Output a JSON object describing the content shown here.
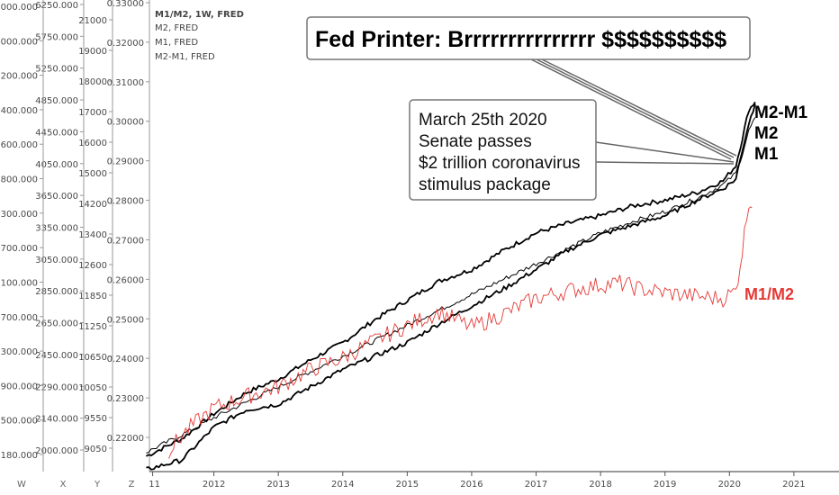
{
  "header": {
    "legend": [
      "M1/M2, 1W, FRED",
      "M2, FRED",
      "M1, FRED",
      "M2-M1, FRED"
    ]
  },
  "annotations": {
    "title_box": "Fed Printer: Brrrrrrrrrrrrrrr $$$$$$$$$$",
    "event_lines": [
      "March 25th 2020",
      "Senate passes",
      "$2 trillion coronavirus",
      "stimulus package"
    ],
    "series_labels": [
      "M2-M1",
      "M2",
      "M1"
    ],
    "ratio_label": "M1/M2"
  },
  "axes_letters": [
    "W",
    "X",
    "Y",
    "Z"
  ],
  "colors": {
    "money_series": "#000000",
    "ratio_series": "#e53935",
    "axis": "#555555",
    "callout_border": "#777777"
  },
  "chart_data": {
    "type": "line",
    "x_ticks": [
      "11",
      "2012",
      "2013",
      "2014",
      "2015",
      "2016",
      "2017",
      "2018",
      "2019",
      "2020",
      "2021"
    ],
    "y_axes": [
      {
        "id": "W",
        "ticks": [
          "15000.000",
          "14000.000",
          "13200.000",
          "12400.000",
          "11600.000",
          "10800.000",
          "10300.000",
          "9700.000",
          "9100.000",
          "8700.000",
          "8300.000",
          "7900.000",
          "7500.000",
          "7180.000"
        ]
      },
      {
        "id": "X",
        "ticks": [
          "6250.000",
          "5750.000",
          "5250.000",
          "4850.000",
          "4450.000",
          "4050.000",
          "3650.000",
          "3350.000",
          "3050.000",
          "2850.000",
          "2650.000",
          "2450.000",
          "2290.000",
          "2140.000",
          "2000.000"
        ]
      },
      {
        "id": "Y",
        "ticks": [
          "21000",
          "19000",
          "18000",
          "17000",
          "16000",
          "15000",
          "14200",
          "13400",
          "12600",
          "11850",
          "11250",
          "10650",
          "10050",
          "9550",
          "9050"
        ]
      },
      {
        "id": "Z",
        "ticks": [
          "0.33000",
          "0.32000",
          "0.31000",
          "0.30000",
          "0.29000",
          "0.28000",
          "0.27000",
          "0.26000",
          "0.25000",
          "0.24000",
          "0.23000",
          "0.22000"
        ]
      }
    ],
    "series": [
      {
        "name": "M2-M1",
        "points": [
          [
            2010.95,
            0.2165
          ],
          [
            2011.5,
            0.221
          ],
          [
            2012.0,
            0.2275
          ],
          [
            2012.5,
            0.233
          ],
          [
            2013.0,
            0.2365
          ],
          [
            2013.5,
            0.2415
          ],
          [
            2014.0,
            0.246
          ],
          [
            2014.5,
            0.252
          ],
          [
            2015.0,
            0.257
          ],
          [
            2015.5,
            0.262
          ],
          [
            2016.0,
            0.265
          ],
          [
            2016.5,
            0.27
          ],
          [
            2017.0,
            0.2745
          ],
          [
            2017.5,
            0.277
          ],
          [
            2018.0,
            0.279
          ],
          [
            2018.5,
            0.2815
          ],
          [
            2019.0,
            0.283
          ],
          [
            2019.5,
            0.285
          ],
          [
            2019.9,
            0.288
          ],
          [
            2020.1,
            0.292
          ],
          [
            2020.2,
            0.299
          ],
          [
            2020.3,
            0.3065
          ],
          [
            2020.4,
            0.3085
          ]
        ]
      },
      {
        "name": "M2",
        "points": [
          [
            2010.95,
            0.2175
          ],
          [
            2011.5,
            0.222
          ],
          [
            2012.0,
            0.2265
          ],
          [
            2012.5,
            0.2305
          ],
          [
            2013.0,
            0.2345
          ],
          [
            2013.5,
            0.2385
          ],
          [
            2014.0,
            0.2425
          ],
          [
            2014.5,
            0.2465
          ],
          [
            2015.0,
            0.2505
          ],
          [
            2015.5,
            0.2545
          ],
          [
            2016.0,
            0.2585
          ],
          [
            2016.5,
            0.2625
          ],
          [
            2017.0,
            0.2665
          ],
          [
            2017.5,
            0.2705
          ],
          [
            2018.0,
            0.2745
          ],
          [
            2018.5,
            0.2775
          ],
          [
            2019.0,
            0.28
          ],
          [
            2019.5,
            0.2835
          ],
          [
            2019.9,
            0.287
          ],
          [
            2020.1,
            0.29
          ],
          [
            2020.2,
            0.295
          ],
          [
            2020.3,
            0.301
          ],
          [
            2020.4,
            0.3045
          ]
        ]
      },
      {
        "name": "M1",
        "points": [
          [
            2010.95,
            0.213
          ],
          [
            2011.5,
            0.2155
          ],
          [
            2012.0,
            0.224
          ],
          [
            2012.5,
            0.2285
          ],
          [
            2013.0,
            0.23
          ],
          [
            2013.5,
            0.2345
          ],
          [
            2014.0,
            0.239
          ],
          [
            2014.5,
            0.2425
          ],
          [
            2015.0,
            0.246
          ],
          [
            2015.5,
            0.251
          ],
          [
            2016.0,
            0.2555
          ],
          [
            2016.5,
            0.26
          ],
          [
            2017.0,
            0.265
          ],
          [
            2017.5,
            0.27
          ],
          [
            2018.0,
            0.274
          ],
          [
            2018.5,
            0.2765
          ],
          [
            2019.0,
            0.279
          ],
          [
            2019.5,
            0.283
          ],
          [
            2019.9,
            0.286
          ],
          [
            2020.1,
            0.2885
          ],
          [
            2020.2,
            0.296
          ],
          [
            2020.3,
            0.303
          ],
          [
            2020.4,
            0.308
          ]
        ]
      },
      {
        "name": "M1/M2",
        "points": [
          [
            2011.3,
            0.218
          ],
          [
            2011.6,
            0.2235
          ],
          [
            2012.0,
            0.229
          ],
          [
            2012.5,
            0.232
          ],
          [
            2013.0,
            0.2345
          ],
          [
            2013.5,
            0.239
          ],
          [
            2014.0,
            0.242
          ],
          [
            2014.5,
            0.2465
          ],
          [
            2015.0,
            0.2505
          ],
          [
            2015.5,
            0.254
          ],
          [
            2016.0,
            0.25
          ],
          [
            2016.5,
            0.2535
          ],
          [
            2017.0,
            0.2575
          ],
          [
            2017.5,
            0.2595
          ],
          [
            2018.0,
            0.261
          ],
          [
            2018.3,
            0.2615
          ],
          [
            2018.6,
            0.26
          ],
          [
            2019.0,
            0.259
          ],
          [
            2019.5,
            0.258
          ],
          [
            2019.9,
            0.2575
          ],
          [
            2020.1,
            0.2595
          ],
          [
            2020.2,
            0.27
          ],
          [
            2020.3,
            0.283
          ],
          [
            2020.35,
            0.281
          ]
        ]
      }
    ],
    "xlim": [
      2011.0,
      2021.7
    ],
    "ylim": [
      0.2125,
      0.335
    ]
  }
}
